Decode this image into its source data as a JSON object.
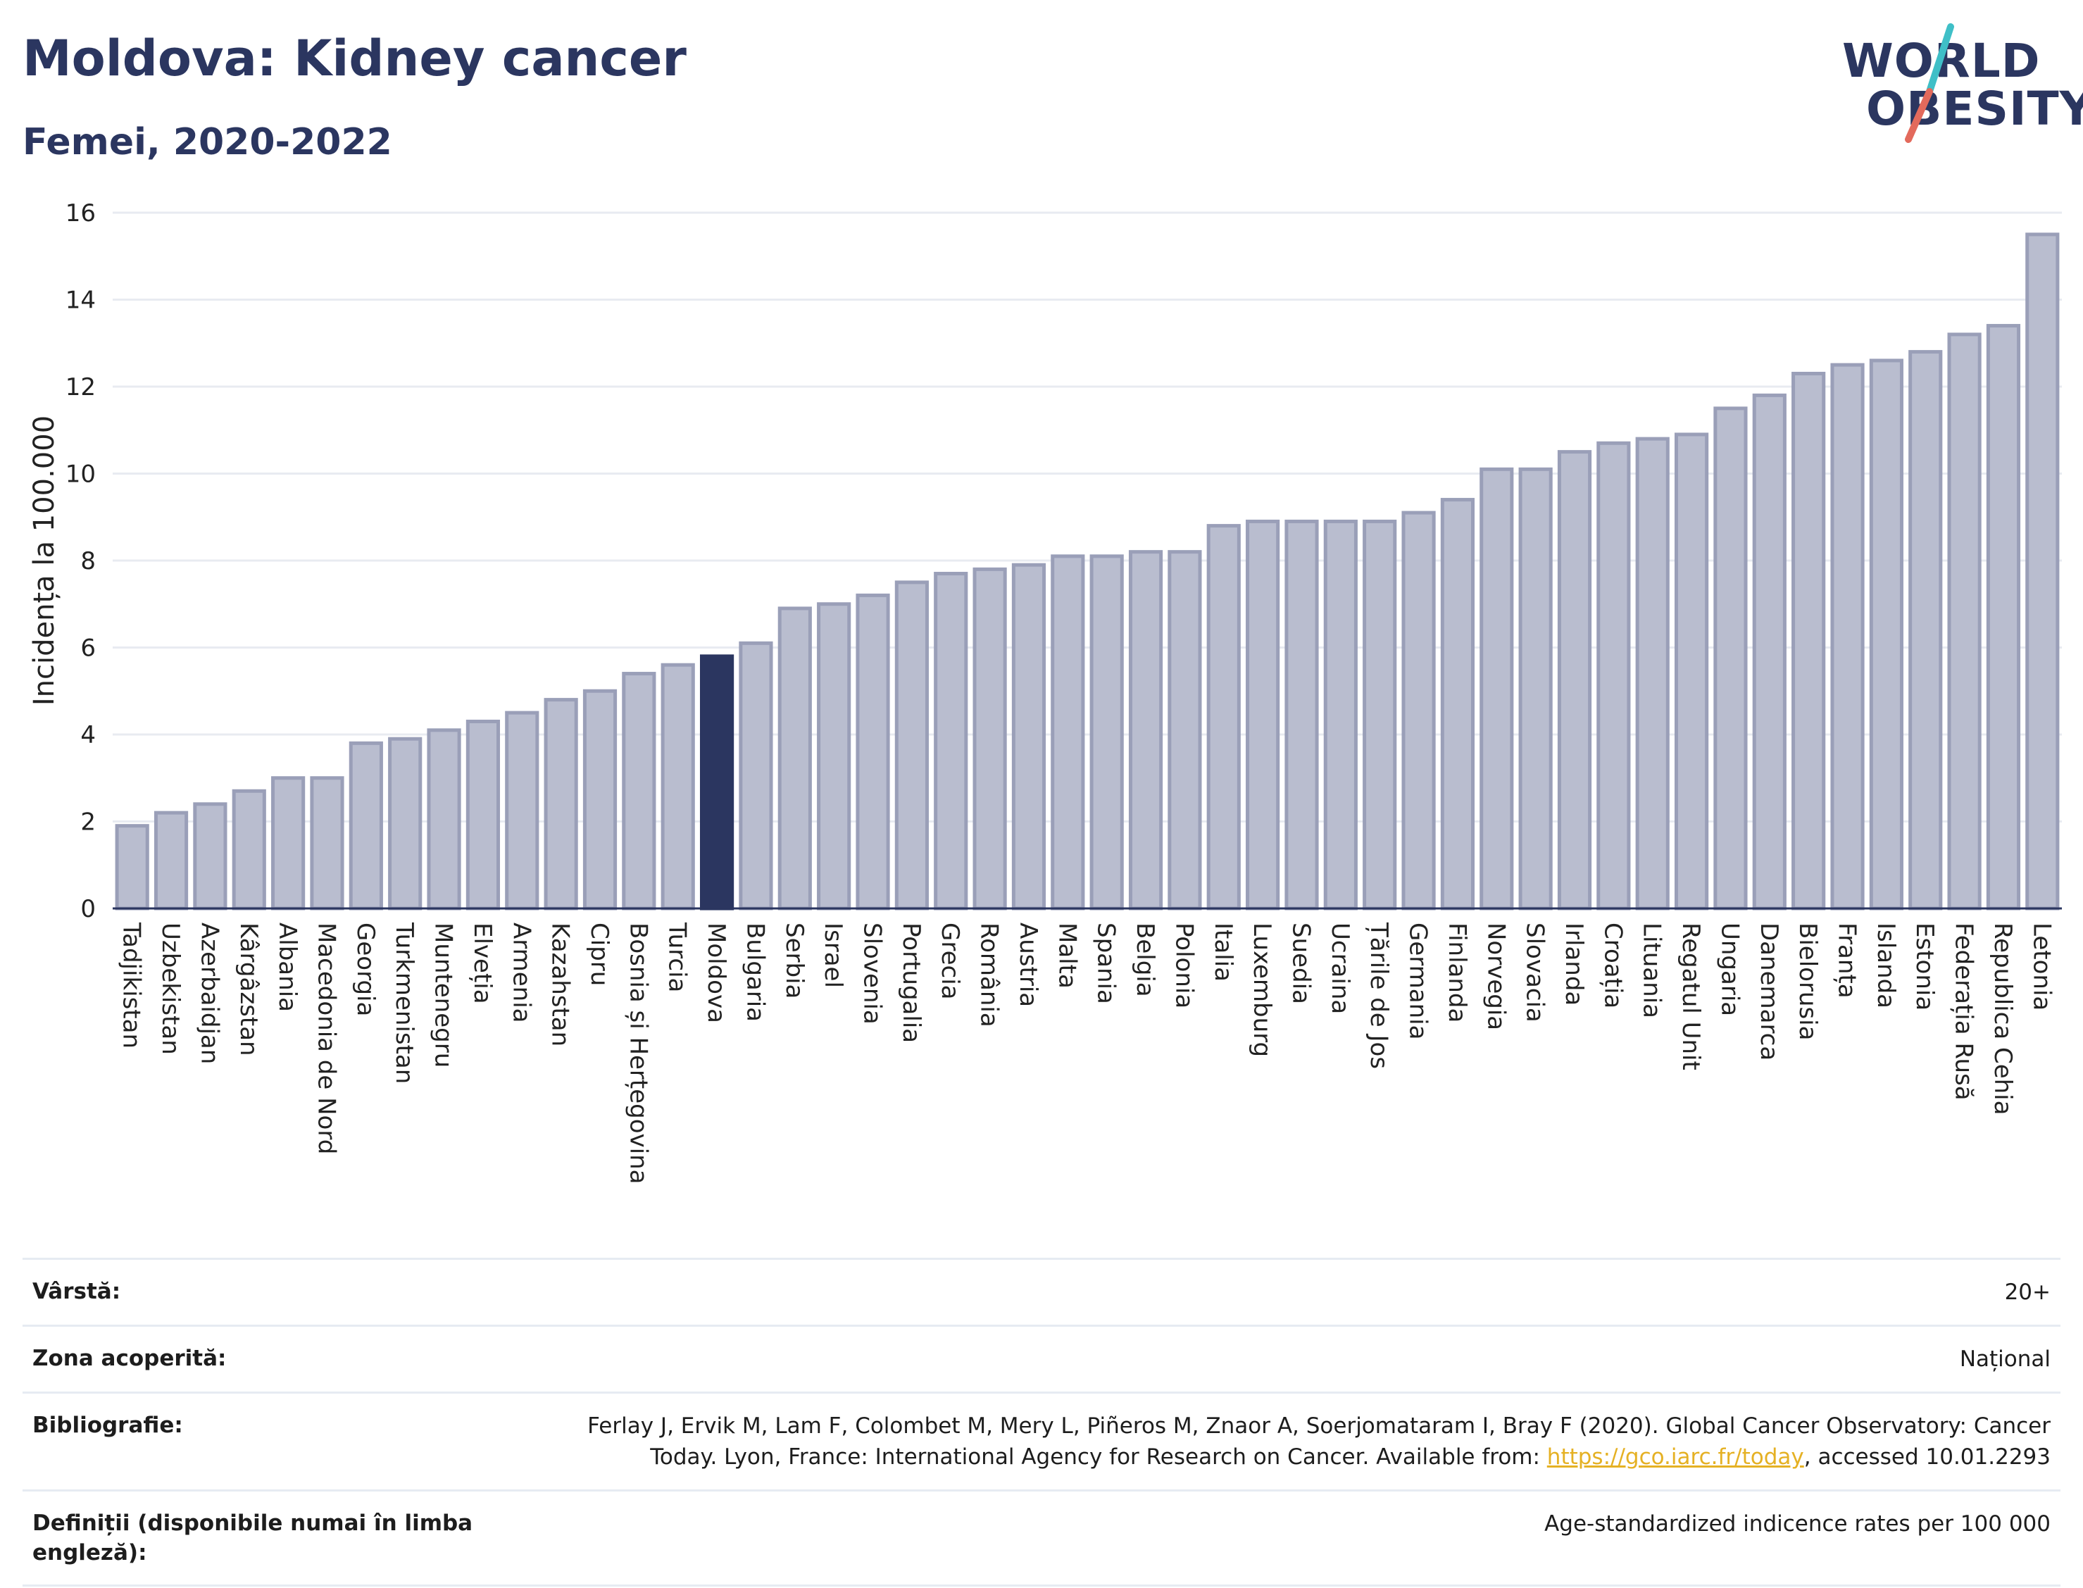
{
  "header": {
    "title": "Moldova: Kidney cancer",
    "subtitle": "Femei, 2020-2022"
  },
  "logo": {
    "line1": "WORLD",
    "line2": "OBESITY",
    "slash_colors": [
      "#3fbfc7",
      "#e36a5c"
    ]
  },
  "chart_data": {
    "type": "bar",
    "ylabel": "Incidența la 100.000",
    "ylim": [
      0,
      16
    ],
    "yticks": [
      0,
      2,
      4,
      6,
      8,
      10,
      12,
      14,
      16
    ],
    "grid": true,
    "highlight": "Moldova",
    "colors": {
      "bar": "#b9bdcf",
      "bar_border": "#9a9fb8",
      "highlight": "#2b3660"
    },
    "categories": [
      "Tadjikistan",
      "Uzbekistan",
      "Azerbaidjan",
      "Kârgâzstan",
      "Albania",
      "Macedonia de Nord",
      "Georgia",
      "Turkmenistan",
      "Muntenegru",
      "Elveția",
      "Armenia",
      "Kazahstan",
      "Cipru",
      "Bosnia și Herțegovina",
      "Turcia",
      "Moldova",
      "Bulgaria",
      "Serbia",
      "Israel",
      "Slovenia",
      "Portugalia",
      "Grecia",
      "România",
      "Austria",
      "Malta",
      "Spania",
      "Belgia",
      "Polonia",
      "Italia",
      "Luxemburg",
      "Suedia",
      "Ucraina",
      "Țările de Jos",
      "Germania",
      "Finlanda",
      "Norvegia",
      "Slovacia",
      "Irlanda",
      "Croația",
      "Lituania",
      "Regatul Unit",
      "Ungaria",
      "Danemarca",
      "Bielorusia",
      "Franța",
      "Islanda",
      "Estonia",
      "Federația Rusă",
      "Republica Cehia",
      "Letonia"
    ],
    "values": [
      1.9,
      2.2,
      2.4,
      2.7,
      3.0,
      3.0,
      3.8,
      3.9,
      4.1,
      4.3,
      4.5,
      4.8,
      5.0,
      5.4,
      5.6,
      5.8,
      6.1,
      6.9,
      7.0,
      7.2,
      7.5,
      7.7,
      7.8,
      7.9,
      8.1,
      8.1,
      8.2,
      8.2,
      8.8,
      8.9,
      8.9,
      8.9,
      8.9,
      9.1,
      9.4,
      10.1,
      10.1,
      10.5,
      10.7,
      10.8,
      10.9,
      11.5,
      11.8,
      12.3,
      12.5,
      12.6,
      12.8,
      13.2,
      13.4,
      15.5
    ]
  },
  "info": {
    "age_label": "Vârstă:",
    "age_value": "20+",
    "coverage_label": "Zona acoperită:",
    "coverage_value": "Național",
    "biblio_label": "Bibliografie:",
    "biblio_text_1": "Ferlay J, Ervik M, Lam F, Colombet M, Mery L, Piñeros M, Znaor A, Soerjomataram I, Bray F (2020). Global Cancer Observatory: Cancer Today. Lyon, France: International Agency for Research on Cancer. Available from: ",
    "biblio_link": "https://gco.iarc.fr/today",
    "biblio_text_2": ", accessed 10.01.2293",
    "def_label": "Definiții (disponibile numai în limba engleză):",
    "def_value": "Age-standardized indicence rates per 100 000"
  }
}
